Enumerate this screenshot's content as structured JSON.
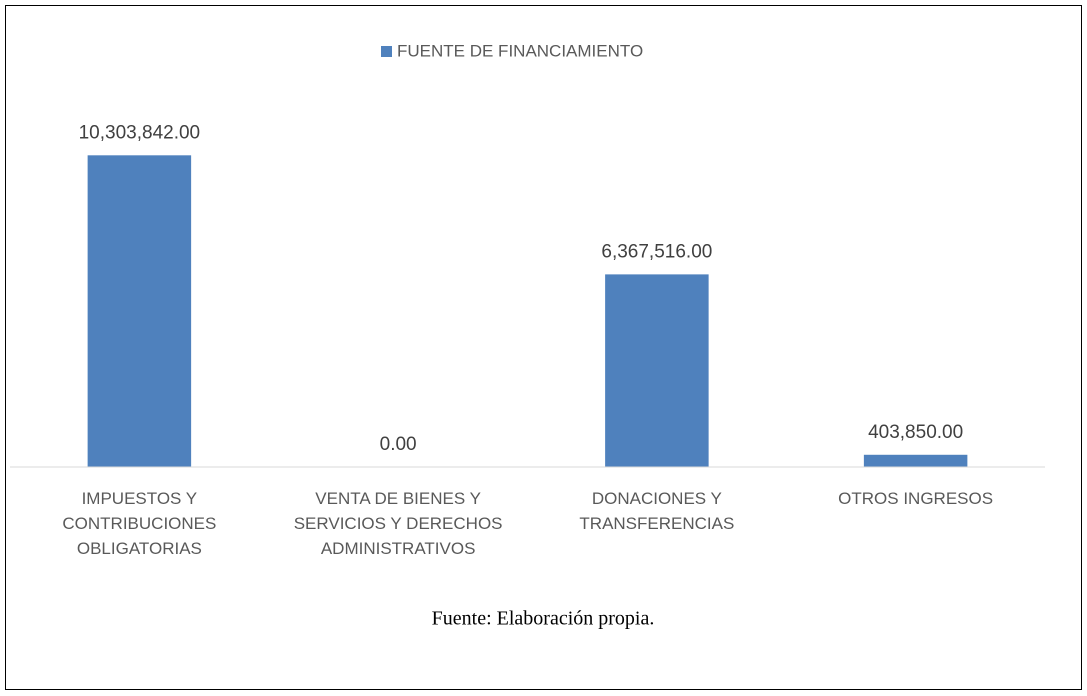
{
  "chart_data": {
    "type": "bar",
    "categories": [
      "IMPUESTOS Y CONTRIBUCIONES OBLIGATORIAS",
      "VENTA DE BIENES Y SERVICIOS Y DERECHOS ADMINISTRATIVOS",
      "DONACIONES Y TRANSFERENCIAS",
      "OTROS INGRESOS"
    ],
    "series": [
      {
        "name": "FUENTE DE FINANCIAMIENTO",
        "color": "#4f81bd",
        "values": [
          10303842,
          0,
          6367516,
          403850
        ],
        "value_labels": [
          "10,303,842.00",
          "0.00",
          "6,367,516.00",
          "403,850.00"
        ]
      }
    ],
    "ylim": [
      0,
      12000000
    ],
    "legend": "top",
    "source": "Fuente: Elaboración propia."
  }
}
